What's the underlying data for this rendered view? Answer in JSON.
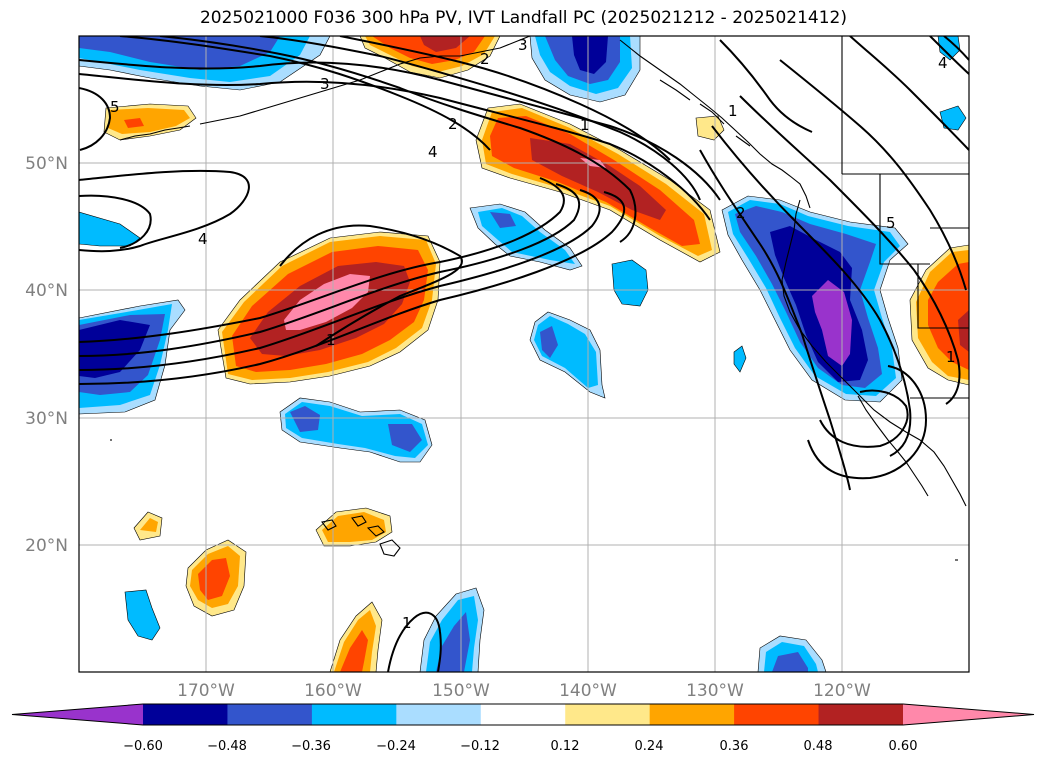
{
  "title": "2025021000 F036 300 hPa PV, IVT Landfall PC (2025021212 - 2025021412)",
  "map": {
    "lon_range": [
      -180,
      -110
    ],
    "lat_range": [
      10,
      60
    ],
    "lat_labels": [
      "50°N",
      "40°N",
      "30°N",
      "20°N"
    ],
    "lon_labels": [
      "170°W",
      "160°W",
      "150°W",
      "140°W",
      "130°W",
      "120°W"
    ],
    "contour_labels": [
      "5",
      "3",
      "4",
      "2",
      "1",
      "3",
      "2",
      "1",
      "1",
      "1",
      "2",
      "5",
      "1",
      "4",
      "4"
    ]
  },
  "colorbar": {
    "colors": [
      "#9933cc",
      "#000099",
      "#3355cc",
      "#00bbff",
      "#aaddff",
      "#ffffff",
      "#ffe88a",
      "#ffa500",
      "#ff4400",
      "#b22222",
      "#ff88aa"
    ],
    "tick_labels": [
      "−0.60",
      "−0.48",
      "−0.36",
      "−0.24",
      "−0.12",
      "0.12",
      "0.24",
      "0.36",
      "0.48",
      "0.60"
    ],
    "extend": "both"
  }
}
